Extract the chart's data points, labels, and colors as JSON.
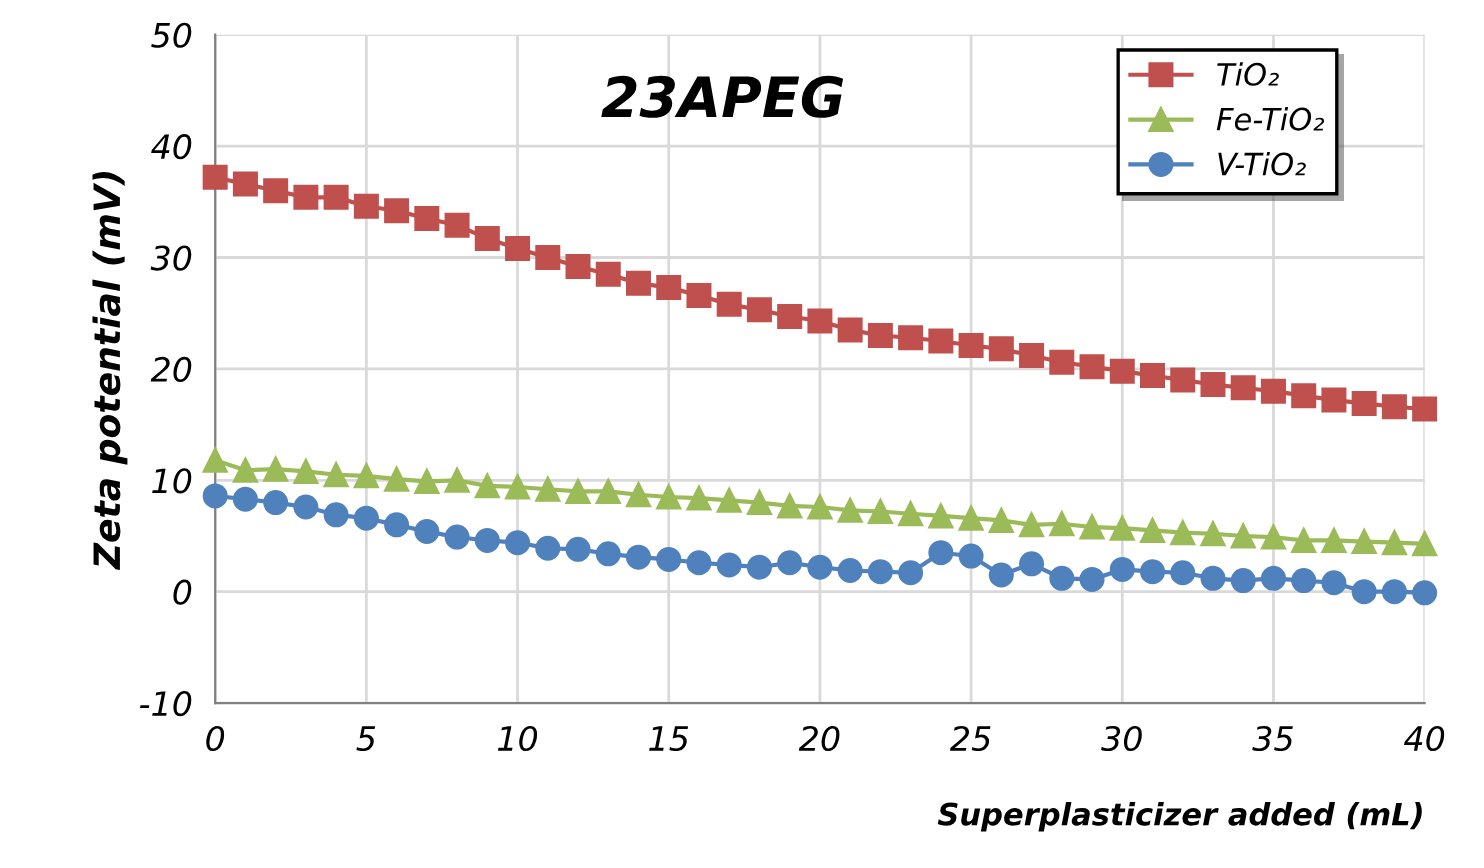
{
  "chart_data": {
    "type": "line",
    "title": "23APEG",
    "xlabel": "Superplasticizer added (mL)",
    "ylabel": "Zeta potential (mV)",
    "x": [
      0,
      1,
      2,
      3,
      4,
      5,
      6,
      7,
      8,
      9,
      10,
      11,
      12,
      13,
      14,
      15,
      16,
      17,
      18,
      19,
      20,
      21,
      22,
      23,
      24,
      25,
      26,
      27,
      28,
      29,
      30,
      31,
      32,
      33,
      34,
      35,
      36,
      37,
      38,
      39,
      40
    ],
    "series": [
      {
        "name": "TiO₂",
        "color": "#c0504d",
        "marker": "square",
        "values": [
          37.2,
          36.6,
          36.0,
          35.4,
          35.4,
          34.6,
          34.2,
          33.5,
          32.9,
          31.7,
          30.8,
          30.0,
          29.2,
          28.5,
          27.7,
          27.3,
          26.6,
          25.8,
          25.3,
          24.7,
          24.3,
          23.5,
          23.0,
          22.8,
          22.5,
          22.1,
          21.8,
          21.2,
          20.6,
          20.2,
          19.8,
          19.4,
          19.0,
          18.6,
          18.3,
          18.0,
          17.6,
          17.2,
          16.9,
          16.6,
          16.4
        ]
      },
      {
        "name": "Fe-TiO₂",
        "color": "#9bbb59",
        "marker": "triangle",
        "values": [
          11.8,
          10.9,
          11.0,
          10.8,
          10.5,
          10.4,
          10.1,
          9.9,
          10.0,
          9.5,
          9.4,
          9.2,
          9.0,
          9.0,
          8.7,
          8.5,
          8.4,
          8.2,
          8.0,
          7.7,
          7.6,
          7.3,
          7.2,
          7.0,
          6.8,
          6.6,
          6.4,
          6.0,
          6.1,
          5.8,
          5.7,
          5.5,
          5.3,
          5.2,
          5.0,
          4.9,
          4.6,
          4.6,
          4.5,
          4.4,
          4.3
        ]
      },
      {
        "name": "V-TiO₂",
        "color": "#4f81bd",
        "marker": "circle",
        "values": [
          8.6,
          8.3,
          8.0,
          7.6,
          6.9,
          6.6,
          6.0,
          5.4,
          4.9,
          4.6,
          4.4,
          3.9,
          3.8,
          3.4,
          3.1,
          2.9,
          2.6,
          2.4,
          2.2,
          2.6,
          2.2,
          1.9,
          1.8,
          1.7,
          3.5,
          3.2,
          1.5,
          2.5,
          1.2,
          1.1,
          2.0,
          1.8,
          1.7,
          1.2,
          1.0,
          1.2,
          1.0,
          0.8,
          0.0,
          0.0,
          -0.1
        ]
      }
    ],
    "xlim": [
      0,
      40
    ],
    "xticks": [
      0,
      5,
      10,
      15,
      20,
      25,
      30,
      35,
      40
    ],
    "ylim": [
      -10,
      50
    ],
    "yticks": [
      -10,
      0,
      10,
      20,
      30,
      40,
      50
    ],
    "grid": true,
    "legend": "top right",
    "line_style": "solid"
  }
}
